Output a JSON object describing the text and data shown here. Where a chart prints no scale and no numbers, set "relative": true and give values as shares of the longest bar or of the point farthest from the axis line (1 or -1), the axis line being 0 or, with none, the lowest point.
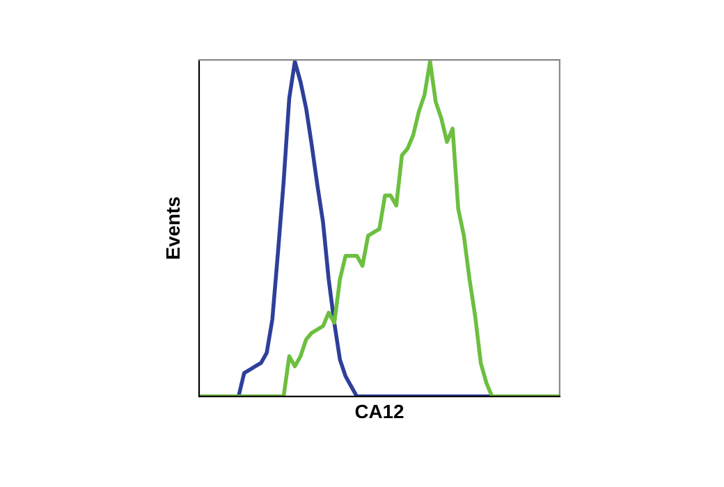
{
  "chart_data": {
    "type": "line",
    "relative": true,
    "xlabel": "CA12",
    "ylabel": "Events",
    "marker": "none",
    "line_style": "solid",
    "categories": [
      null,
      null,
      null,
      null,
      null,
      null,
      null,
      null,
      null,
      null,
      null,
      null,
      null,
      null,
      null,
      null,
      null,
      null,
      null,
      null,
      null,
      null,
      null,
      null,
      null,
      null,
      null,
      null,
      null,
      null,
      null,
      null,
      null,
      null,
      null,
      null,
      null,
      null,
      null,
      null,
      null,
      null,
      null,
      null,
      null,
      null,
      null,
      null,
      null,
      null,
      null,
      null,
      null,
      null,
      null,
      null,
      null,
      null,
      null,
      null,
      null,
      null,
      null,
      null,
      null
    ],
    "series": [
      {
        "color": "#2e3f9a",
        "values": [
          null,
          null,
          null,
          null,
          null,
          null,
          null,
          0,
          0.07,
          0.08,
          0.09,
          0.1,
          0.13,
          0.23,
          0.43,
          0.64,
          0.89,
          1.0,
          0.94,
          0.86,
          0.75,
          0.63,
          0.52,
          0.35,
          0.22,
          0.11,
          0.06,
          0.03,
          0,
          0,
          0,
          0,
          0,
          0,
          0,
          0,
          0,
          0,
          0,
          0,
          0,
          0,
          0,
          0,
          0,
          0,
          0,
          0,
          0,
          0,
          0,
          0,
          0,
          null,
          null,
          null,
          null,
          null,
          null,
          null,
          null,
          null,
          null,
          null,
          null
        ]
      },
      {
        "color": "#6cbf3f",
        "values": [
          0,
          0,
          0,
          0,
          0,
          0,
          0,
          0,
          0,
          0,
          0,
          0,
          0,
          0,
          0,
          0,
          0.12,
          0.09,
          0.12,
          0.17,
          0.19,
          0.2,
          0.21,
          0.25,
          0.22,
          0.35,
          0.42,
          0.42,
          0.42,
          0.39,
          0.48,
          0.49,
          0.5,
          0.6,
          0.6,
          0.57,
          0.72,
          0.74,
          0.78,
          0.85,
          0.9,
          1.0,
          0.88,
          0.83,
          0.76,
          0.8,
          0.56,
          0.48,
          0.35,
          0.24,
          0.1,
          0.04,
          0,
          0,
          0,
          0,
          0,
          0,
          0,
          0,
          0,
          0,
          0,
          0,
          0
        ]
      }
    ]
  }
}
